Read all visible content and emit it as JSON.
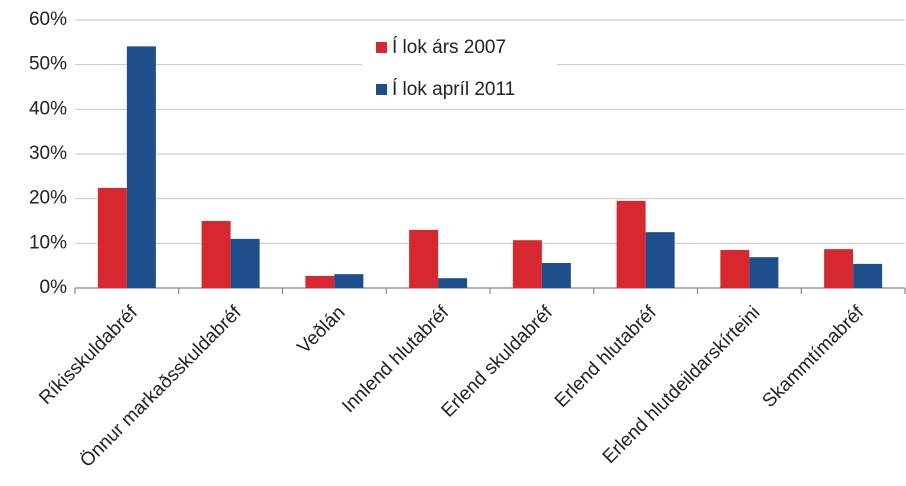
{
  "chart_data": {
    "type": "bar",
    "categories": [
      "Ríkisskuldabréf",
      "Önnur markaðsskuldabréf",
      "Veðlán",
      "Innlend hlutabréf",
      "Erlend skuldabréf",
      "Erlend hlutabréf",
      "Erlend hlutdeildarskírteini",
      "Skammtímabréf"
    ],
    "series": [
      {
        "name": "Í lok árs 2007",
        "color": "#d7282f",
        "values": [
          22.4,
          15,
          2.7,
          13,
          10.7,
          19.5,
          8.5,
          8.7
        ]
      },
      {
        "name": "Í lok apríl 2011",
        "color": "#1f4e8c",
        "values": [
          54.1,
          11,
          3.1,
          2.2,
          5.6,
          12.5,
          6.9,
          5.4
        ]
      }
    ],
    "ylim": [
      0,
      60
    ],
    "yticks": [
      {
        "value": 0,
        "label": "0%"
      },
      {
        "value": 10,
        "label": "10%"
      },
      {
        "value": 20,
        "label": "20%"
      },
      {
        "value": 30,
        "label": "30%"
      },
      {
        "value": 40,
        "label": "40%"
      },
      {
        "value": 50,
        "label": "50%"
      },
      {
        "value": 60,
        "label": "60%"
      }
    ],
    "grid": true,
    "legend": "top"
  }
}
